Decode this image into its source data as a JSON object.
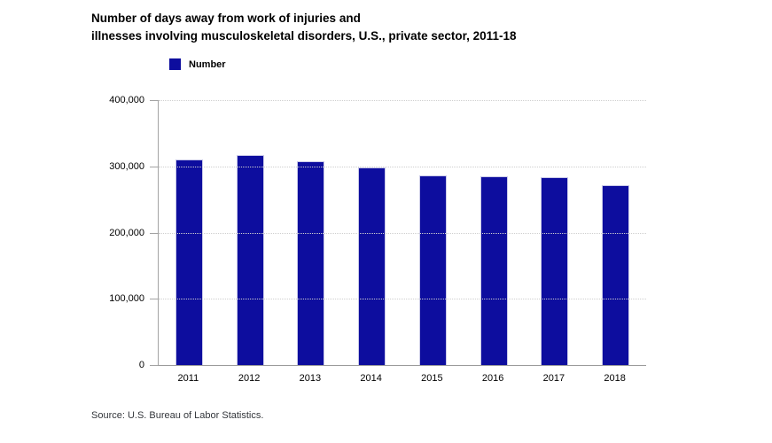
{
  "title": {
    "line1": "Number of days away from work of injuries and",
    "line2": "illnesses involving musculoskeletal disorders, U.S., private sector, 2011-18"
  },
  "legend": {
    "label": "Number",
    "swatch_color": "#0d0d9e"
  },
  "chart_data": {
    "type": "bar",
    "title": "Number of days away from work of injuries and illnesses involving musculoskeletal disorders, U.S., private sector, 2011-18",
    "categories": [
      "2011",
      "2012",
      "2013",
      "2014",
      "2015",
      "2016",
      "2017",
      "2018"
    ],
    "series": [
      {
        "name": "Number",
        "values": [
          311000,
          317000,
          308000,
          298000,
          286000,
          285000,
          283000,
          272000
        ]
      }
    ],
    "xlabel": "",
    "ylabel": "",
    "ylim": [
      0,
      400000
    ],
    "ytick_interval": 100000,
    "ytick_labels_top_to_bottom": [
      "400,000",
      "300,000",
      "200,000",
      "100,000",
      "0"
    ],
    "grid": "horizontal-dotted",
    "legend_position": "top-left",
    "bar_color": "#0d0d9e",
    "bar_border_color": "#c9c9e8"
  },
  "source": "Source: U.S. Bureau of Labor Statistics."
}
